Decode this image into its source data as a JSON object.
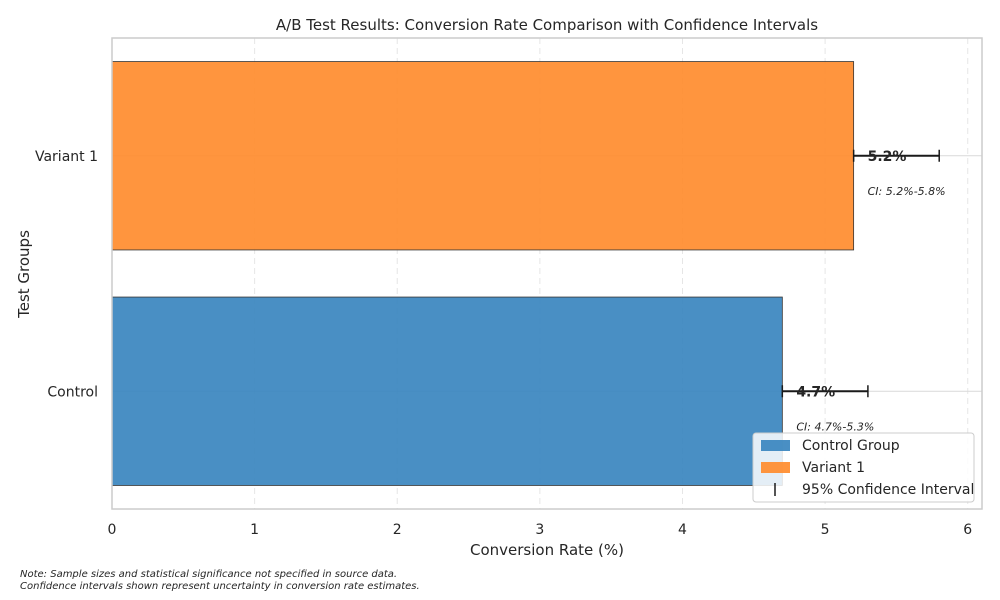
{
  "chart_data": {
    "type": "bar",
    "orientation": "horizontal",
    "title": "A/B Test Results: Conversion Rate Comparison with Confidence Intervals",
    "xlabel": "Conversion Rate (%)",
    "ylabel": "Test Groups",
    "xlim": [
      0,
      6.1
    ],
    "x_ticks": [
      "0",
      "1",
      "2",
      "3",
      "4",
      "5",
      "6"
    ],
    "grid": true,
    "categories": [
      "Control",
      "Variant 1"
    ],
    "values": [
      4.7,
      5.2
    ],
    "ci_lower": [
      4.7,
      5.2
    ],
    "ci_upper": [
      5.3,
      5.8
    ],
    "value_labels": [
      "4.7%",
      "5.2%"
    ],
    "ci_labels": [
      "CI: 4.7%-5.3%",
      "CI: 5.2%-5.8%"
    ],
    "colors": [
      "#3a86bf",
      "#ff8c2e"
    ],
    "legend": {
      "position": "bottom-right",
      "entries": [
        "Control Group",
        "Variant 1",
        "95% Confidence Interval"
      ]
    }
  },
  "notes": [
    "Note: Sample sizes and statistical significance not specified in source data.",
    "Confidence intervals shown represent uncertainty in conversion rate estimates."
  ]
}
